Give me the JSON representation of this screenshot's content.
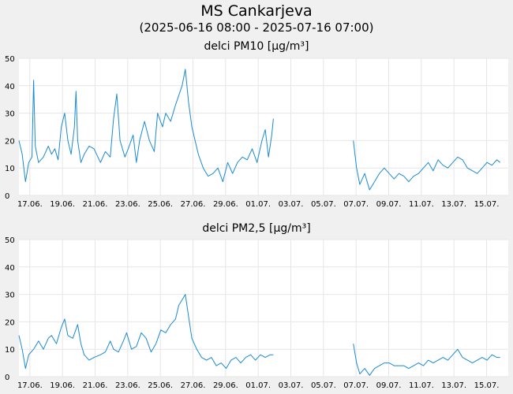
{
  "header": {
    "title": "MS Cankarjeva",
    "period": "(2025-06-16 08:00 - 2025-07-16 07:00)"
  },
  "colors": {
    "line": "#1a8ad4",
    "grid": "#e6e6e6",
    "plot_bg": "#ffffff",
    "page_bg": "#f0f0f0"
  },
  "chart_data": [
    {
      "type": "line",
      "title": "delci PM10 [µg/m³]",
      "xlabel": "",
      "ylabel": "",
      "ylim": [
        0,
        50
      ],
      "yticks": [
        0,
        10,
        20,
        30,
        40,
        50
      ],
      "xlim_days": [
        0,
        30
      ],
      "xticks": [
        {
          "day": 0.67,
          "label": "17.06."
        },
        {
          "day": 2.67,
          "label": "19.06."
        },
        {
          "day": 4.67,
          "label": "21.06."
        },
        {
          "day": 6.67,
          "label": "23.06."
        },
        {
          "day": 8.67,
          "label": "25.06."
        },
        {
          "day": 10.67,
          "label": "27.06."
        },
        {
          "day": 12.67,
          "label": "29.06."
        },
        {
          "day": 14.67,
          "label": "01.07."
        },
        {
          "day": 16.67,
          "label": "03.07."
        },
        {
          "day": 18.67,
          "label": "05.07."
        },
        {
          "day": 20.67,
          "label": "07.07."
        },
        {
          "day": 22.67,
          "label": "09.07."
        },
        {
          "day": 24.67,
          "label": "11.07."
        },
        {
          "day": 26.67,
          "label": "13.07."
        },
        {
          "day": 28.67,
          "label": "15.07."
        }
      ],
      "series": [
        {
          "name": "PM10",
          "segments": [
            [
              [
                0.0,
                20
              ],
              [
                0.2,
                15
              ],
              [
                0.4,
                5
              ],
              [
                0.6,
                12
              ],
              [
                0.8,
                14
              ],
              [
                0.9,
                42
              ],
              [
                1.0,
                18
              ],
              [
                1.2,
                12
              ],
              [
                1.5,
                14
              ],
              [
                1.8,
                18
              ],
              [
                2.0,
                15
              ],
              [
                2.2,
                17
              ],
              [
                2.4,
                13
              ],
              [
                2.6,
                25
              ],
              [
                2.8,
                30
              ],
              [
                3.0,
                20
              ],
              [
                3.2,
                15
              ],
              [
                3.4,
                25
              ],
              [
                3.5,
                38
              ],
              [
                3.6,
                20
              ],
              [
                3.8,
                12
              ],
              [
                4.0,
                15
              ],
              [
                4.3,
                18
              ],
              [
                4.6,
                17
              ],
              [
                5.0,
                12
              ],
              [
                5.3,
                16
              ],
              [
                5.6,
                14
              ],
              [
                5.8,
                28
              ],
              [
                6.0,
                37
              ],
              [
                6.2,
                20
              ],
              [
                6.5,
                14
              ],
              [
                6.7,
                17
              ],
              [
                7.0,
                22
              ],
              [
                7.2,
                12
              ],
              [
                7.4,
                20
              ],
              [
                7.7,
                27
              ],
              [
                8.0,
                20
              ],
              [
                8.3,
                16
              ],
              [
                8.5,
                30
              ],
              [
                8.8,
                25
              ],
              [
                9.0,
                30
              ],
              [
                9.3,
                27
              ],
              [
                9.6,
                33
              ],
              [
                10.0,
                40
              ],
              [
                10.2,
                46
              ],
              [
                10.4,
                34
              ],
              [
                10.6,
                25
              ],
              [
                10.8,
                20
              ],
              [
                11.0,
                15
              ],
              [
                11.3,
                10
              ],
              [
                11.6,
                7
              ],
              [
                11.9,
                8
              ],
              [
                12.2,
                10
              ],
              [
                12.5,
                5
              ],
              [
                12.8,
                12
              ],
              [
                13.1,
                8
              ],
              [
                13.4,
                12
              ],
              [
                13.7,
                14
              ],
              [
                14.0,
                13
              ],
              [
                14.3,
                17
              ],
              [
                14.6,
                12
              ],
              [
                14.9,
                20
              ],
              [
                15.1,
                24
              ],
              [
                15.3,
                14
              ],
              [
                15.5,
                22
              ],
              [
                15.6,
                28
              ]
            ],
            [
              [
                20.5,
                20
              ],
              [
                20.7,
                10
              ],
              [
                20.9,
                4
              ],
              [
                21.2,
                8
              ],
              [
                21.5,
                2
              ],
              [
                21.8,
                5
              ],
              [
                22.1,
                8
              ],
              [
                22.4,
                10
              ],
              [
                22.7,
                8
              ],
              [
                23.0,
                6
              ],
              [
                23.3,
                8
              ],
              [
                23.6,
                7
              ],
              [
                23.9,
                5
              ],
              [
                24.2,
                7
              ],
              [
                24.5,
                8
              ],
              [
                24.8,
                10
              ],
              [
                25.1,
                12
              ],
              [
                25.4,
                9
              ],
              [
                25.7,
                13
              ],
              [
                26.0,
                11
              ],
              [
                26.3,
                10
              ],
              [
                26.6,
                12
              ],
              [
                26.9,
                14
              ],
              [
                27.2,
                13
              ],
              [
                27.5,
                10
              ],
              [
                27.8,
                9
              ],
              [
                28.1,
                8
              ],
              [
                28.4,
                10
              ],
              [
                28.7,
                12
              ],
              [
                29.0,
                11
              ],
              [
                29.3,
                13
              ],
              [
                29.5,
                12
              ]
            ]
          ]
        }
      ]
    },
    {
      "type": "line",
      "title": "delci PM2,5 [µg/m³]",
      "xlabel": "",
      "ylabel": "",
      "ylim": [
        0,
        50
      ],
      "yticks": [
        0,
        10,
        20,
        30,
        40,
        50
      ],
      "xlim_days": [
        0,
        30
      ],
      "xticks": [
        {
          "day": 0.67,
          "label": "17.06."
        },
        {
          "day": 2.67,
          "label": "19.06."
        },
        {
          "day": 4.67,
          "label": "21.06."
        },
        {
          "day": 6.67,
          "label": "23.06."
        },
        {
          "day": 8.67,
          "label": "25.06."
        },
        {
          "day": 10.67,
          "label": "27.06."
        },
        {
          "day": 12.67,
          "label": "29.06."
        },
        {
          "day": 14.67,
          "label": "01.07."
        },
        {
          "day": 16.67,
          "label": "03.07."
        },
        {
          "day": 18.67,
          "label": "05.07."
        },
        {
          "day": 20.67,
          "label": "07.07."
        },
        {
          "day": 22.67,
          "label": "09.07."
        },
        {
          "day": 24.67,
          "label": "11.07."
        },
        {
          "day": 26.67,
          "label": "13.07."
        },
        {
          "day": 28.67,
          "label": "15.07."
        }
      ],
      "series": [
        {
          "name": "PM2,5",
          "segments": [
            [
              [
                0.0,
                15
              ],
              [
                0.2,
                10
              ],
              [
                0.4,
                3
              ],
              [
                0.6,
                8
              ],
              [
                0.9,
                10
              ],
              [
                1.2,
                13
              ],
              [
                1.5,
                10
              ],
              [
                1.8,
                14
              ],
              [
                2.0,
                15
              ],
              [
                2.3,
                12
              ],
              [
                2.6,
                18
              ],
              [
                2.8,
                21
              ],
              [
                3.0,
                15
              ],
              [
                3.3,
                14
              ],
              [
                3.6,
                19
              ],
              [
                3.8,
                12
              ],
              [
                4.0,
                8
              ],
              [
                4.3,
                6
              ],
              [
                4.6,
                7
              ],
              [
                5.0,
                8
              ],
              [
                5.3,
                9
              ],
              [
                5.6,
                13
              ],
              [
                5.8,
                10
              ],
              [
                6.1,
                9
              ],
              [
                6.4,
                13
              ],
              [
                6.6,
                16
              ],
              [
                6.9,
                10
              ],
              [
                7.2,
                11
              ],
              [
                7.5,
                16
              ],
              [
                7.8,
                14
              ],
              [
                8.1,
                9
              ],
              [
                8.4,
                12
              ],
              [
                8.7,
                17
              ],
              [
                9.0,
                16
              ],
              [
                9.3,
                19
              ],
              [
                9.6,
                21
              ],
              [
                9.8,
                26
              ],
              [
                10.0,
                28
              ],
              [
                10.2,
                30
              ],
              [
                10.4,
                22
              ],
              [
                10.6,
                14
              ],
              [
                10.9,
                10
              ],
              [
                11.2,
                7
              ],
              [
                11.5,
                6
              ],
              [
                11.8,
                7
              ],
              [
                12.1,
                4
              ],
              [
                12.4,
                5
              ],
              [
                12.7,
                3
              ],
              [
                13.0,
                6
              ],
              [
                13.3,
                7
              ],
              [
                13.6,
                5
              ],
              [
                13.9,
                7
              ],
              [
                14.2,
                8
              ],
              [
                14.5,
                6
              ],
              [
                14.8,
                8
              ],
              [
                15.1,
                7
              ],
              [
                15.4,
                8
              ],
              [
                15.6,
                8
              ]
            ],
            [
              [
                20.5,
                12
              ],
              [
                20.7,
                5
              ],
              [
                20.9,
                1
              ],
              [
                21.2,
                3
              ],
              [
                21.5,
                0.5
              ],
              [
                21.8,
                3
              ],
              [
                22.1,
                4
              ],
              [
                22.4,
                5
              ],
              [
                22.7,
                5
              ],
              [
                23.0,
                4
              ],
              [
                23.3,
                4
              ],
              [
                23.6,
                4
              ],
              [
                23.9,
                3
              ],
              [
                24.2,
                4
              ],
              [
                24.5,
                5
              ],
              [
                24.8,
                4
              ],
              [
                25.1,
                6
              ],
              [
                25.4,
                5
              ],
              [
                25.7,
                6
              ],
              [
                26.0,
                7
              ],
              [
                26.3,
                6
              ],
              [
                26.6,
                8
              ],
              [
                26.9,
                10
              ],
              [
                27.2,
                7
              ],
              [
                27.5,
                6
              ],
              [
                27.8,
                5
              ],
              [
                28.1,
                6
              ],
              [
                28.4,
                7
              ],
              [
                28.7,
                6
              ],
              [
                29.0,
                8
              ],
              [
                29.3,
                7
              ],
              [
                29.5,
                7
              ]
            ]
          ]
        }
      ]
    }
  ]
}
